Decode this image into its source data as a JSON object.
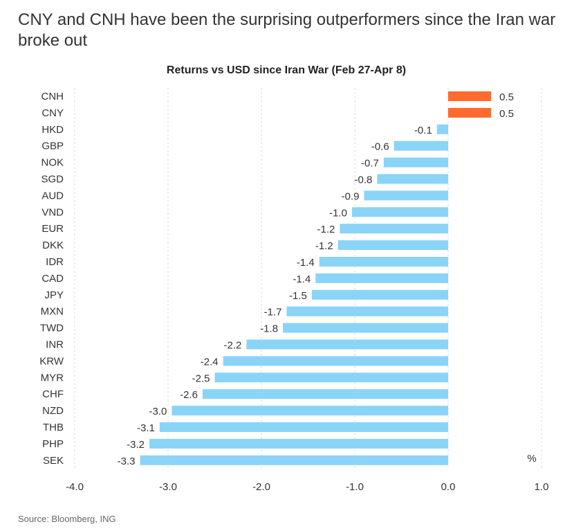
{
  "headline": "CNY and CNH have been the surprising outperformers since the Iran war broke out",
  "source": "Source: Bloomberg, ING",
  "colors": {
    "positive": "#FF6A2E",
    "negative": "#8AD4F8",
    "grid": "#dddddd",
    "text": "#333333"
  },
  "chart_data": {
    "type": "bar",
    "orientation": "horizontal",
    "title": "Returns vs USD since Iran War (Feb 27-Apr 8)",
    "unit_label": "%",
    "xlim": [
      -4.0,
      1.0
    ],
    "xticks": [
      -4.0,
      -3.0,
      -2.0,
      -1.0,
      0.0,
      1.0
    ],
    "tick_labels": [
      "-4.0",
      "-3.0",
      "-2.0",
      "-1.0",
      "0.0",
      "1.0"
    ],
    "grid": "vertical-dashed",
    "categories": [
      "CNH",
      "CNY",
      "HKD",
      "GBP",
      "NOK",
      "SGD",
      "AUD",
      "VND",
      "EUR",
      "DKK",
      "IDR",
      "CAD",
      "JPY",
      "MXN",
      "TWD",
      "INR",
      "KRW",
      "MYR",
      "CHF",
      "NZD",
      "THB",
      "PHP",
      "SEK"
    ],
    "values": [
      0.46,
      0.46,
      -0.12,
      -0.58,
      -0.69,
      -0.76,
      -0.9,
      -1.03,
      -1.16,
      -1.18,
      -1.38,
      -1.42,
      -1.46,
      -1.73,
      -1.77,
      -2.16,
      -2.41,
      -2.5,
      -2.63,
      -2.96,
      -3.09,
      -3.2,
      -3.3
    ],
    "value_labels": [
      "0.5",
      "0.5",
      "-0.1",
      "-0.6",
      "-0.7",
      "-0.8",
      "-0.9",
      "-1.0",
      "-1.2",
      "-1.2",
      "-1.4",
      "-1.4",
      "-1.5",
      "-1.7",
      "-1.8",
      "-2.2",
      "-2.4",
      "-2.5",
      "-2.6",
      "-3.0",
      "-3.1",
      "-3.2",
      "-3.3"
    ]
  }
}
